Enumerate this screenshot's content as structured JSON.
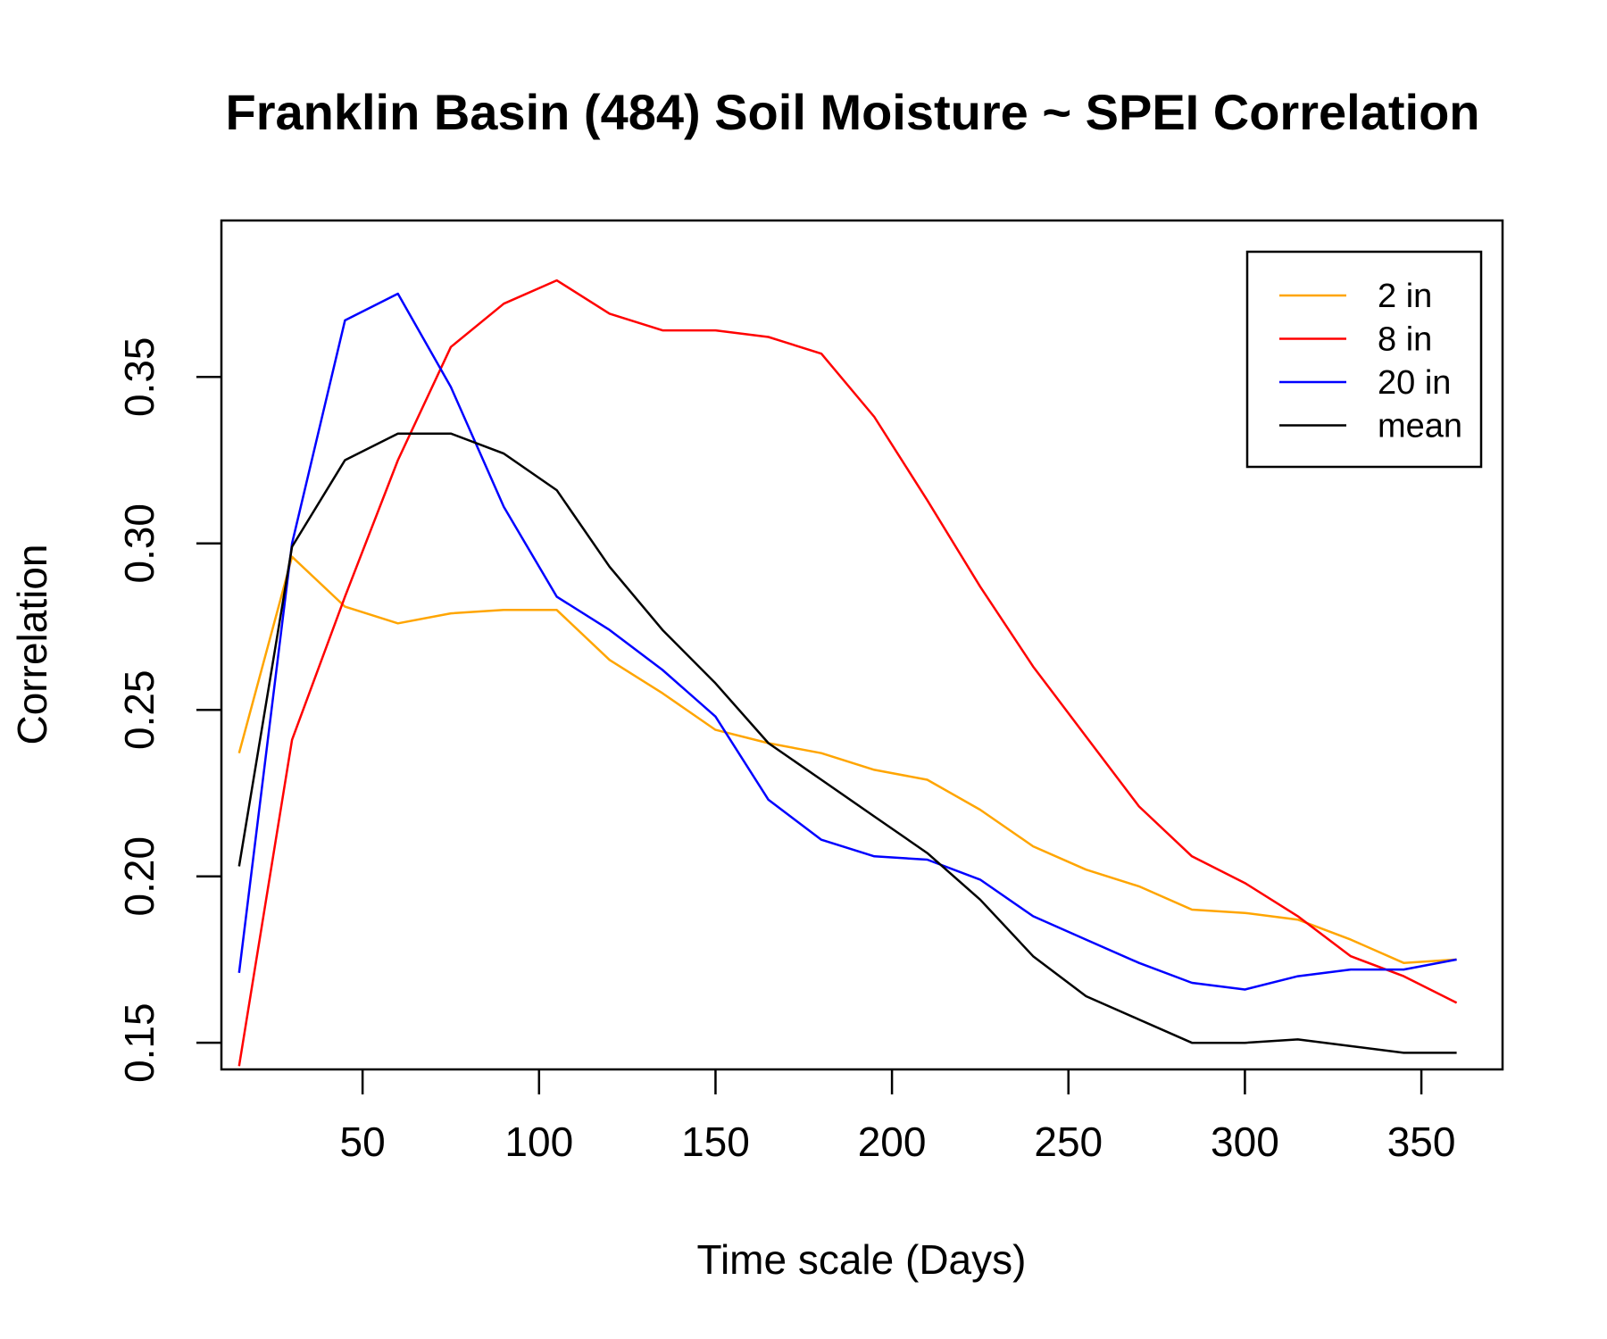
{
  "chart_data": {
    "type": "line",
    "title": "Franklin Basin (484) Soil Moisture ~ SPEI Correlation",
    "xlabel": "Time scale (Days)",
    "ylabel": "Correlation",
    "xlim": [
      10,
      373
    ],
    "ylim": [
      0.142,
      0.397
    ],
    "xticks": [
      50,
      100,
      150,
      200,
      250,
      300,
      350
    ],
    "xtick_labels": [
      "50",
      "100",
      "150",
      "200",
      "250",
      "300",
      "350"
    ],
    "yticks": [
      0.15,
      0.2,
      0.25,
      0.3,
      0.35
    ],
    "ytick_labels": [
      "0.15",
      "0.20",
      "0.25",
      "0.30",
      "0.35"
    ],
    "grid": false,
    "legend_position": "top-right",
    "x": [
      15,
      30,
      45,
      60,
      75,
      90,
      105,
      120,
      135,
      150,
      165,
      180,
      195,
      210,
      225,
      240,
      255,
      270,
      285,
      300,
      315,
      330,
      345,
      360
    ],
    "series": [
      {
        "name": "2 in",
        "color": "#FFA500",
        "values": [
          0.237,
          0.296,
          0.281,
          0.276,
          0.279,
          0.28,
          0.28,
          0.265,
          0.255,
          0.244,
          0.24,
          0.237,
          0.232,
          0.229,
          0.22,
          0.209,
          0.202,
          0.197,
          0.19,
          0.189,
          0.187,
          0.181,
          0.174,
          0.175
        ]
      },
      {
        "name": "8 in",
        "color": "#FF0000",
        "values": [
          0.143,
          0.241,
          0.284,
          0.325,
          0.359,
          0.372,
          0.379,
          0.369,
          0.364,
          0.364,
          0.362,
          0.357,
          0.338,
          0.313,
          0.287,
          0.263,
          0.242,
          0.221,
          0.206,
          0.198,
          0.188,
          0.176,
          0.17,
          0.162
        ]
      },
      {
        "name": "20 in",
        "color": "#0000FF",
        "values": [
          0.171,
          0.3,
          0.367,
          0.375,
          0.347,
          0.311,
          0.284,
          0.274,
          0.262,
          0.248,
          0.223,
          0.211,
          0.206,
          0.205,
          0.199,
          0.188,
          0.181,
          0.174,
          0.168,
          0.166,
          0.17,
          0.172,
          0.172,
          0.175
        ]
      },
      {
        "name": "mean",
        "color": "#000000",
        "values": [
          0.203,
          0.299,
          0.325,
          0.333,
          0.333,
          0.327,
          0.316,
          0.293,
          0.274,
          0.258,
          0.24,
          0.229,
          0.218,
          0.207,
          0.193,
          0.176,
          0.164,
          0.157,
          0.15,
          0.15,
          0.151,
          0.149,
          0.147,
          0.147
        ]
      }
    ]
  }
}
